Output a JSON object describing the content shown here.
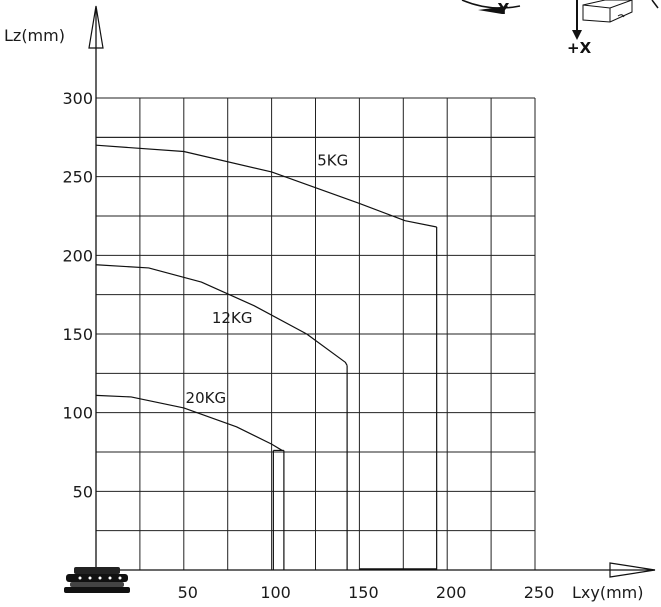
{
  "chart_data": {
    "type": "line",
    "xlabel": "Lxy(mm)",
    "ylabel": "Lz(mm)",
    "x_ticks": [
      50,
      100,
      150,
      200,
      250
    ],
    "y_ticks": [
      50,
      100,
      150,
      200,
      250,
      300
    ],
    "xlim": [
      0,
      250
    ],
    "ylim": [
      0,
      300
    ],
    "grid": true,
    "series": [
      {
        "name": "5KG",
        "points": [
          [
            0,
            270
          ],
          [
            50,
            266
          ],
          [
            100,
            253
          ],
          [
            150,
            233
          ],
          [
            176,
            222
          ],
          [
            194,
            218
          ]
        ],
        "drop_x": [
          194
        ],
        "label_at": [
          126,
          257
        ]
      },
      {
        "name": "12KG",
        "points": [
          [
            0,
            194
          ],
          [
            30,
            192
          ],
          [
            60,
            183
          ],
          [
            90,
            168
          ],
          [
            120,
            150
          ],
          [
            142,
            132
          ],
          [
            143,
            130
          ]
        ],
        "drop_x": [
          143
        ],
        "label_at": [
          66,
          157
        ]
      },
      {
        "name": "20KG",
        "points": [
          [
            0,
            111
          ],
          [
            20,
            110
          ],
          [
            50,
            103
          ],
          [
            80,
            91
          ],
          [
            100,
            80
          ],
          [
            106,
            76
          ]
        ],
        "drop_x": [
          101,
          107
        ],
        "label_at": [
          51,
          106
        ]
      }
    ]
  },
  "orientation_icon": {
    "labels": [
      "-Y",
      "+X"
    ]
  }
}
